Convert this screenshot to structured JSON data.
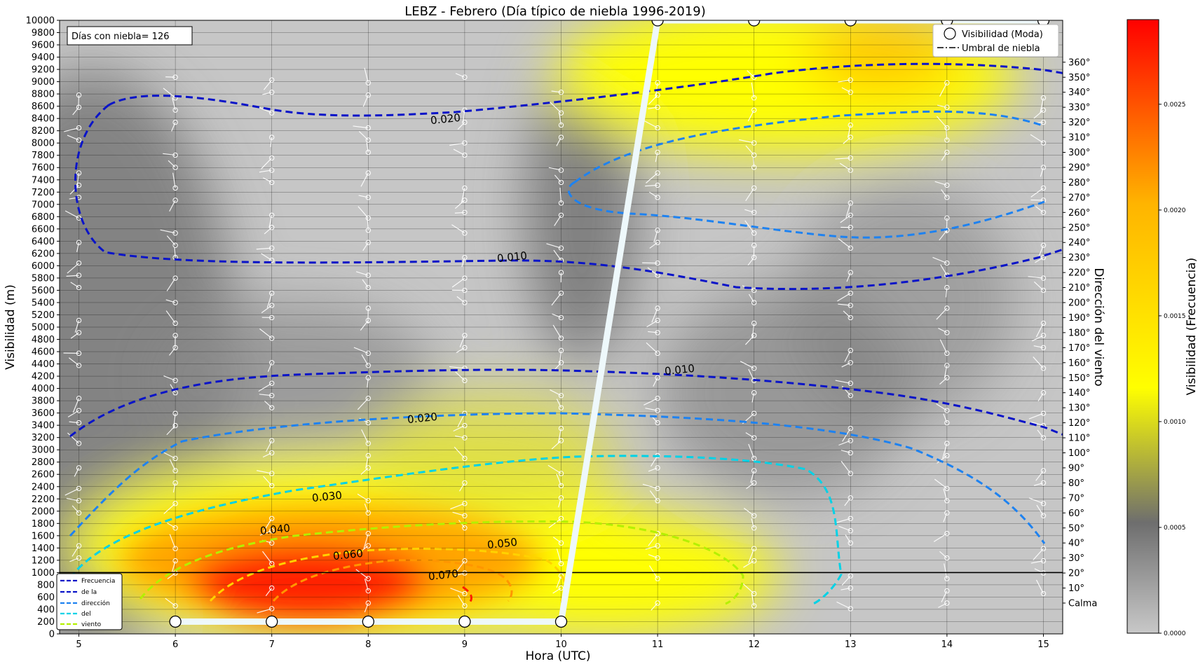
{
  "chart_data": {
    "type": "heatmap",
    "title": "LEBZ - Febrero (Día típico de niebla 1996-2019)",
    "xlabel": "Hora (UTC)",
    "ylabel": "Visibilidad (m)",
    "y2label": "Dirección del viento",
    "colorbar_label": "Visibilidad (Frecuencia)",
    "annotation": "Días con niebla= 126",
    "x_ticks": [
      5,
      6,
      7,
      8,
      9,
      10,
      11,
      12,
      13,
      14,
      15
    ],
    "xlim": [
      4.8,
      15.2
    ],
    "ylim": [
      0,
      10000
    ],
    "y_ticks": [
      0,
      200,
      400,
      600,
      800,
      1000,
      1200,
      1400,
      1600,
      1800,
      2000,
      2200,
      2400,
      2600,
      2800,
      3000,
      3200,
      3400,
      3600,
      3800,
      4000,
      4200,
      4400,
      4600,
      4800,
      5000,
      5200,
      5400,
      5600,
      5800,
      6000,
      6200,
      6400,
      6600,
      6800,
      7000,
      7200,
      7400,
      7600,
      7800,
      8000,
      8200,
      8400,
      8600,
      8800,
      9000,
      9200,
      9400,
      9600,
      9800,
      10000
    ],
    "y2_ticks": [
      "Calma",
      "10°",
      "20°",
      "30°",
      "40°",
      "50°",
      "60°",
      "70°",
      "80°",
      "90°",
      "100°",
      "110°",
      "120°",
      "130°",
      "140°",
      "150°",
      "160°",
      "170°",
      "180°",
      "190°",
      "200°",
      "210°",
      "220°",
      "230°",
      "240°",
      "250°",
      "260°",
      "270°",
      "280°",
      "290°",
      "300°",
      "310°",
      "320°",
      "330°",
      "340°",
      "350°",
      "360°"
    ],
    "colorbar_ticks": [
      "0.0000",
      "0.0005",
      "0.0010",
      "0.0015",
      "0.0020",
      "0.0025"
    ],
    "colorbar_range": [
      0,
      0.0029
    ],
    "threshold": 1000,
    "series": [
      {
        "name": "Visibilidad (Moda)",
        "x": [
          6,
          7,
          8,
          9,
          10,
          11,
          12,
          13,
          14,
          15
        ],
        "values": [
          200,
          200,
          200,
          200,
          200,
          10000,
          10000,
          10000,
          10000,
          10000
        ]
      },
      {
        "name": "Umbral de niebla",
        "x": [
          4.8,
          15.2
        ],
        "values": [
          1000,
          1000
        ]
      }
    ],
    "contour_labels": [
      "0.010",
      "0.010",
      "0.020",
      "0.020",
      "0.030",
      "0.040",
      "0.050",
      "0.060",
      "0.070"
    ],
    "legend_primary": {
      "position": "top-right",
      "entries": [
        "Visibilidad (Moda)",
        "Umbral de niebla"
      ]
    },
    "legend_secondary": {
      "position": "bottom-left",
      "entries": [
        "Frecuencia",
        "de  la",
        "dirección",
        "del",
        "viento"
      ]
    },
    "colors": {
      "cool": "#c8c8c8",
      "mid": "#6e6e6e",
      "warm1": "#ffff00",
      "warm2": "#ffa500",
      "hot": "#ff0000",
      "c010": "#0a14c8",
      "c020": "#1e82f0",
      "c030": "#00d2e6",
      "c040": "#b4f000",
      "c050": "#ffd200",
      "c060": "#ff9600",
      "c070": "#ff1e00"
    }
  }
}
